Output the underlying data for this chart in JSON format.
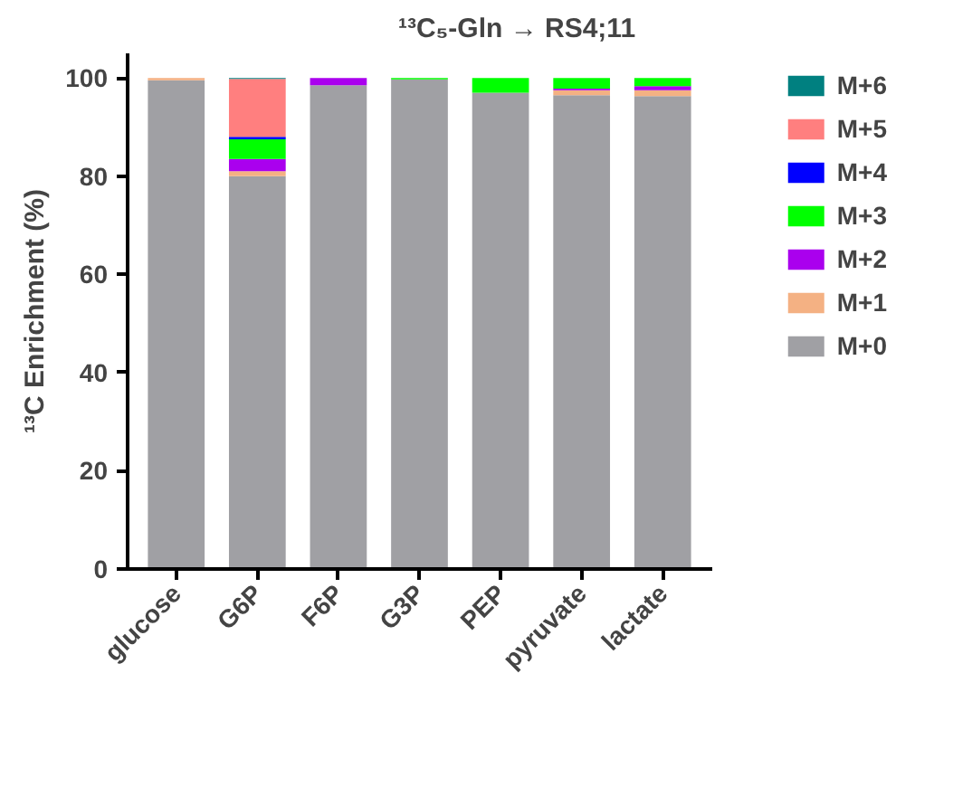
{
  "chart_data": {
    "type": "bar",
    "stacked": true,
    "title": "¹³C₅-Gln → RS4;11",
    "ylabel": "¹³C Enrichment (%)",
    "categories": [
      "glucose",
      "G6P",
      "F6P",
      "G3P",
      "PEP",
      "pyruvate",
      "lactate"
    ],
    "series": [
      {
        "name": "M+0",
        "color": "#a0a0a4",
        "values": [
          99.5,
          80,
          98.5,
          99.7,
          97,
          96.5,
          96.3
        ]
      },
      {
        "name": "M+1",
        "color": "#f4b183",
        "values": [
          0.5,
          1,
          0,
          0,
          0,
          1,
          1.2
        ]
      },
      {
        "name": "M+2",
        "color": "#aa00ee",
        "values": [
          0,
          2.5,
          1.5,
          0,
          0,
          0.3,
          0.8
        ]
      },
      {
        "name": "M+3",
        "color": "#00ff00",
        "values": [
          0,
          4,
          0,
          0.3,
          3,
          2.2,
          1.7
        ]
      },
      {
        "name": "M+4",
        "color": "#0000ff",
        "values": [
          0,
          0.5,
          0,
          0,
          0,
          0,
          0
        ]
      },
      {
        "name": "M+5",
        "color": "#ff7f7f",
        "values": [
          0,
          11.8,
          0,
          0,
          0,
          0,
          0
        ]
      },
      {
        "name": "M+6",
        "color": "#008080",
        "values": [
          0,
          0.2,
          0,
          0,
          0,
          0,
          0
        ]
      }
    ],
    "ylim": [
      0,
      105
    ],
    "yticks": [
      0,
      20,
      40,
      60,
      80,
      100
    ],
    "grid": false,
    "legend": "right"
  }
}
